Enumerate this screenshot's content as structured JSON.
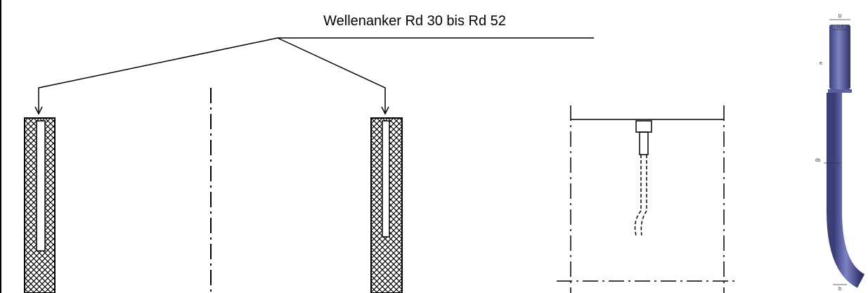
{
  "title": "Wellenanker Rd 30 bis Rd 52",
  "dimensions": {
    "D": "D",
    "Rd": "Rd",
    "e": "e",
    "ds": "ds",
    "b": "b"
  }
}
